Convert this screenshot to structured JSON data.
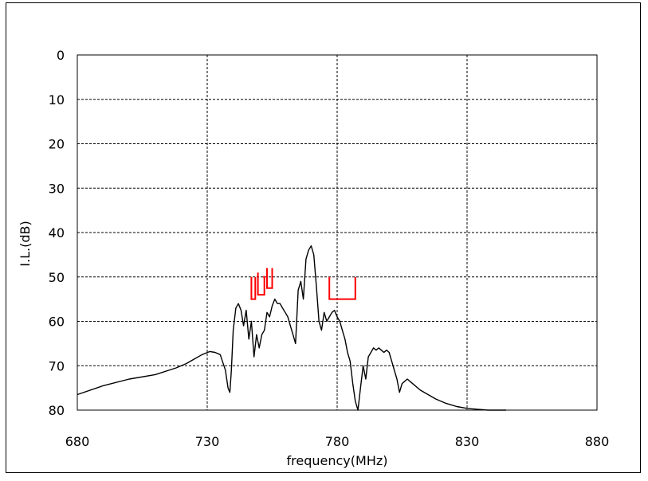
{
  "chart_data": {
    "type": "line",
    "title": "",
    "xlabel": "frequency(MHz)",
    "ylabel": "I.L.(dB)",
    "xlim": [
      680,
      880
    ],
    "ylim": [
      0,
      80
    ],
    "y_inverted": true,
    "grid": true,
    "x_ticks": [
      "680",
      "730",
      "780",
      "830",
      "880"
    ],
    "y_ticks": [
      "0",
      "10",
      "20",
      "30",
      "40",
      "50",
      "60",
      "70",
      "80"
    ],
    "colors": {
      "trace": "#000000",
      "mask": "#ff0000",
      "grid": "#000000"
    },
    "series": [
      {
        "x": [
          680,
          690,
          700,
          710,
          718,
          722,
          725,
          728,
          731,
          733,
          735,
          737,
          738,
          738.7,
          739.3,
          740,
          741,
          742,
          743,
          744,
          745,
          746,
          747,
          748,
          749,
          750,
          751,
          752,
          753,
          754,
          755,
          756,
          757,
          758,
          759,
          760,
          761,
          762,
          763,
          764,
          765,
          766,
          767,
          768,
          769,
          770,
          771,
          772,
          773,
          774,
          775,
          776,
          777,
          778,
          779,
          780,
          781,
          782,
          783,
          784,
          785,
          786,
          787,
          788,
          789,
          790,
          791,
          792,
          793,
          794,
          795,
          796,
          797,
          798,
          799,
          800,
          801,
          802,
          803,
          804,
          805,
          806,
          807,
          808,
          810,
          812,
          815,
          818,
          822,
          826,
          830,
          834,
          838,
          842,
          845
        ],
        "y": [
          76.5,
          74.5,
          73,
          72,
          70.5,
          69.5,
          68.5,
          67.5,
          66.8,
          67,
          67.5,
          71,
          75,
          76,
          71,
          62,
          57,
          56,
          57.5,
          61,
          57.5,
          64,
          60,
          68,
          63,
          66,
          63,
          62,
          58,
          59,
          56.5,
          55,
          56,
          56,
          57,
          58,
          59,
          61,
          63,
          65,
          53,
          51,
          55,
          46,
          44,
          43,
          45,
          52,
          60,
          62,
          58,
          60,
          59,
          58,
          57.5,
          59,
          60,
          62,
          64,
          67,
          69,
          74,
          78,
          80,
          75,
          70,
          73,
          68,
          67,
          66,
          66.5,
          66,
          66.5,
          67,
          66.5,
          67,
          69,
          71,
          73,
          76,
          74,
          73.5,
          73,
          73.5,
          74.5,
          75.5,
          76.5,
          77.5,
          78.5,
          79.2,
          79.6,
          79.8,
          80,
          80,
          80
        ]
      }
    ],
    "mask": [
      {
        "x": [
          747,
          747,
          748.5,
          748.5
        ],
        "y": [
          50,
          55,
          55,
          50
        ]
      },
      {
        "x": [
          749.5,
          749.5,
          752,
          752,
          751.5
        ],
        "y": [
          49,
          54,
          54,
          50,
          50
        ]
      },
      {
        "x": [
          753,
          753,
          755,
          755
        ],
        "y": [
          48,
          52.5,
          52.5,
          48
        ]
      },
      {
        "x": [
          777,
          777,
          787,
          787
        ],
        "y": [
          50,
          55,
          55,
          50
        ]
      }
    ]
  }
}
